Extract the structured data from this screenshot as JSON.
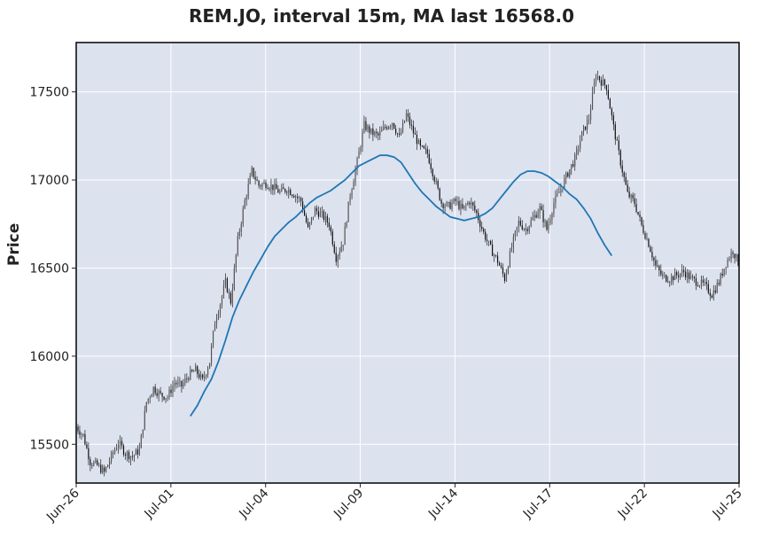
{
  "chart_data": {
    "type": "candlestick",
    "title": "REM.JO, interval 15m, MA last 16568.0",
    "ylabel": "Price",
    "ylim": [
      15280,
      17780
    ],
    "yticks": [
      15500,
      16000,
      16500,
      17000,
      17500
    ],
    "xticks": [
      "Jun-26",
      "Jul-01",
      "Jul-04",
      "Jul-09",
      "Jul-14",
      "Jul-17",
      "Jul-22",
      "Jul-25"
    ],
    "grid": true,
    "colors": {
      "background": "#dde2ef",
      "candle": "#222222",
      "ma": "#1f77b4",
      "grid": "#ffffff"
    },
    "price_path": [
      [
        0.0,
        15600
      ],
      [
        0.8,
        15550
      ],
      [
        1.6,
        15400
      ],
      [
        2.4,
        15380
      ],
      [
        3.2,
        15340
      ],
      [
        4.0,
        15430
      ],
      [
        4.8,
        15510
      ],
      [
        5.6,
        15450
      ],
      [
        6.4,
        15430
      ],
      [
        7.2,
        15470
      ],
      [
        8.0,
        15740
      ],
      [
        8.8,
        15820
      ],
      [
        9.6,
        15780
      ],
      [
        10.4,
        15770
      ],
      [
        11.2,
        15850
      ],
      [
        12.0,
        15830
      ],
      [
        12.8,
        15890
      ],
      [
        13.6,
        15920
      ],
      [
        14.4,
        15860
      ],
      [
        15.2,
        15970
      ],
      [
        15.8,
        16200
      ],
      [
        16.4,
        16300
      ],
      [
        17.0,
        16420
      ],
      [
        17.6,
        16310
      ],
      [
        18.4,
        16660
      ],
      [
        19.2,
        16880
      ],
      [
        20.0,
        17050
      ],
      [
        20.8,
        16970
      ],
      [
        21.6,
        16980
      ],
      [
        22.4,
        16960
      ],
      [
        23.2,
        16930
      ],
      [
        24.0,
        16950
      ],
      [
        24.8,
        16920
      ],
      [
        25.6,
        16880
      ],
      [
        26.4,
        16720
      ],
      [
        27.2,
        16830
      ],
      [
        28.0,
        16800
      ],
      [
        28.8,
        16750
      ],
      [
        29.6,
        16560
      ],
      [
        30.4,
        16650
      ],
      [
        31.2,
        16920
      ],
      [
        32.0,
        17100
      ],
      [
        32.8,
        17310
      ],
      [
        33.6,
        17270
      ],
      [
        34.4,
        17250
      ],
      [
        35.2,
        17300
      ],
      [
        36.0,
        17330
      ],
      [
        36.8,
        17240
      ],
      [
        37.6,
        17370
      ],
      [
        38.4,
        17270
      ],
      [
        39.2,
        17180
      ],
      [
        40.0,
        17150
      ],
      [
        40.8,
        17010
      ],
      [
        41.6,
        16870
      ],
      [
        42.4,
        16850
      ],
      [
        43.2,
        16880
      ],
      [
        44.0,
        16830
      ],
      [
        44.8,
        16880
      ],
      [
        45.6,
        16810
      ],
      [
        46.4,
        16700
      ],
      [
        47.2,
        16610
      ],
      [
        48.0,
        16540
      ],
      [
        48.8,
        16440
      ],
      [
        49.6,
        16620
      ],
      [
        50.4,
        16760
      ],
      [
        51.2,
        16720
      ],
      [
        52.0,
        16780
      ],
      [
        52.8,
        16840
      ],
      [
        53.6,
        16720
      ],
      [
        54.4,
        16870
      ],
      [
        55.2,
        16950
      ],
      [
        56.0,
        17040
      ],
      [
        56.8,
        17120
      ],
      [
        57.6,
        17260
      ],
      [
        58.4,
        17350
      ],
      [
        59.2,
        17600
      ],
      [
        59.8,
        17560
      ],
      [
        60.4,
        17530
      ],
      [
        61.2,
        17300
      ],
      [
        62.0,
        17100
      ],
      [
        62.8,
        16920
      ],
      [
        63.6,
        16870
      ],
      [
        64.4,
        16740
      ],
      [
        65.2,
        16640
      ],
      [
        66.0,
        16510
      ],
      [
        66.8,
        16450
      ],
      [
        67.6,
        16440
      ],
      [
        68.4,
        16460
      ],
      [
        69.2,
        16480
      ],
      [
        70.0,
        16440
      ],
      [
        70.8,
        16420
      ],
      [
        71.6,
        16400
      ],
      [
        72.4,
        16350
      ],
      [
        73.2,
        16420
      ],
      [
        74.0,
        16530
      ],
      [
        74.8,
        16600
      ],
      [
        75.5,
        16520
      ]
    ],
    "ma_path": [
      [
        13.0,
        15660
      ],
      [
        13.8,
        15720
      ],
      [
        14.6,
        15800
      ],
      [
        15.4,
        15870
      ],
      [
        16.2,
        15970
      ],
      [
        17.0,
        16090
      ],
      [
        17.8,
        16220
      ],
      [
        18.6,
        16320
      ],
      [
        19.4,
        16400
      ],
      [
        20.2,
        16480
      ],
      [
        21.0,
        16550
      ],
      [
        21.8,
        16620
      ],
      [
        22.6,
        16680
      ],
      [
        23.4,
        16720
      ],
      [
        24.2,
        16760
      ],
      [
        25.0,
        16790
      ],
      [
        25.8,
        16830
      ],
      [
        26.6,
        16870
      ],
      [
        27.4,
        16900
      ],
      [
        28.2,
        16920
      ],
      [
        29.0,
        16940
      ],
      [
        29.8,
        16970
      ],
      [
        30.6,
        17000
      ],
      [
        31.4,
        17040
      ],
      [
        32.2,
        17080
      ],
      [
        33.0,
        17100
      ],
      [
        33.8,
        17120
      ],
      [
        34.6,
        17140
      ],
      [
        35.4,
        17140
      ],
      [
        36.2,
        17130
      ],
      [
        37.0,
        17100
      ],
      [
        37.8,
        17040
      ],
      [
        38.6,
        16980
      ],
      [
        39.4,
        16930
      ],
      [
        40.2,
        16890
      ],
      [
        41.0,
        16850
      ],
      [
        41.8,
        16820
      ],
      [
        42.6,
        16790
      ],
      [
        43.4,
        16780
      ],
      [
        44.2,
        16770
      ],
      [
        45.0,
        16780
      ],
      [
        45.8,
        16790
      ],
      [
        46.6,
        16810
      ],
      [
        47.4,
        16840
      ],
      [
        48.2,
        16890
      ],
      [
        49.0,
        16940
      ],
      [
        49.8,
        16990
      ],
      [
        50.6,
        17030
      ],
      [
        51.4,
        17050
      ],
      [
        52.2,
        17050
      ],
      [
        53.0,
        17040
      ],
      [
        53.8,
        17020
      ],
      [
        54.6,
        16990
      ],
      [
        55.4,
        16960
      ],
      [
        56.2,
        16920
      ],
      [
        57.0,
        16890
      ],
      [
        57.8,
        16840
      ],
      [
        58.6,
        16780
      ],
      [
        59.4,
        16700
      ],
      [
        60.2,
        16630
      ],
      [
        61.0,
        16570
      ]
    ]
  }
}
